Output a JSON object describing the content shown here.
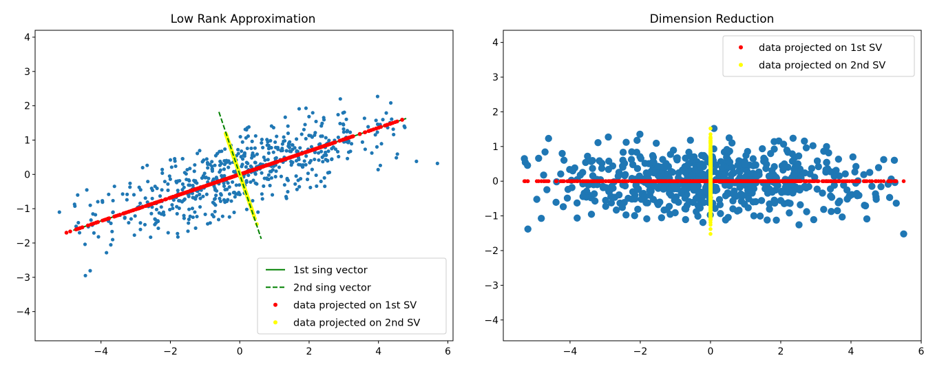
{
  "chart_data": [
    {
      "type": "scatter",
      "title": "Low Rank Approximation",
      "xlabel": "",
      "ylabel": "",
      "xlim": [
        -5.9,
        6.15
      ],
      "ylim": [
        -4.85,
        4.2
      ],
      "xticks": [
        -4,
        -2,
        0,
        2,
        4,
        6
      ],
      "yticks": [
        -4,
        -3,
        -2,
        -1,
        0,
        1,
        2,
        3,
        4
      ],
      "tick_labels_x": [
        "−4",
        "−2",
        "0",
        "2",
        "4",
        "6"
      ],
      "tick_labels_y": [
        "−4",
        "−3",
        "−2",
        "−1",
        "0",
        "1",
        "2",
        "3",
        "4"
      ],
      "legend_position": "lower-right",
      "data_cloud": {
        "name": "data",
        "color": "#1f77b4",
        "n_points": 600,
        "principal_slope": 0.34,
        "spread_major": 2.2,
        "spread_minor": 0.5,
        "extremes": [
          [
            5.7,
            0.32
          ],
          [
            -4.45,
            -2.95
          ],
          [
            2.9,
            2.2
          ],
          [
            -5.2,
            -1.1
          ]
        ]
      },
      "series": [
        {
          "name": "1st sing vector",
          "kind": "line",
          "style": "solid",
          "color": "#008000",
          "x": [
            -4.8,
            4.8
          ],
          "y": [
            -1.63,
            1.63
          ]
        },
        {
          "name": "2nd sing vector",
          "kind": "line",
          "style": "dashed",
          "color": "#008000",
          "x": [
            -0.6,
            0.62
          ],
          "y": [
            1.82,
            -1.88
          ]
        },
        {
          "name": "data projected on 1st SV",
          "kind": "scatter",
          "color": "#ff0000",
          "x_range": [
            -5.05,
            5.15
          ]
        },
        {
          "name": "data projected on 2nd SV",
          "kind": "scatter",
          "color": "#ffff00",
          "x_range": [
            -0.52,
            0.55
          ]
        }
      ]
    },
    {
      "type": "scatter",
      "title": "Dimension Reduction",
      "xlabel": "",
      "ylabel": "",
      "xlim": [
        -5.9,
        6.0
      ],
      "ylim": [
        -4.6,
        4.35
      ],
      "xticks": [
        -4,
        -2,
        0,
        2,
        4,
        6
      ],
      "yticks": [
        -4,
        -3,
        -2,
        -1,
        0,
        1,
        2,
        3,
        4
      ],
      "tick_labels_x": [
        "−4",
        "−2",
        "0",
        "2",
        "4",
        "6"
      ],
      "tick_labels_y": [
        "−4",
        "−3",
        "−2",
        "−1",
        "0",
        "1",
        "2",
        "3",
        "4"
      ],
      "legend_position": "upper-right",
      "data_cloud": {
        "name": "data",
        "color": "#1f77b4",
        "n_points": 600,
        "spread_x": 2.2,
        "spread_y": 0.5,
        "extremes": [
          [
            5.5,
            -1.52
          ],
          [
            5.1,
            -0.47
          ],
          [
            -5.2,
            -1.38
          ],
          [
            -5.3,
            0.65
          ],
          [
            0.1,
            1.52
          ]
        ]
      },
      "series": [
        {
          "name": "data projected on 1st SV",
          "kind": "scatter",
          "color": "#ff0000",
          "x_range": [
            -5.4,
            5.5
          ],
          "y": 0
        },
        {
          "name": "data projected on 2nd SV",
          "kind": "scatter",
          "color": "#ffff00",
          "y_range": [
            -1.72,
            1.52
          ],
          "x": 0
        }
      ]
    }
  ]
}
